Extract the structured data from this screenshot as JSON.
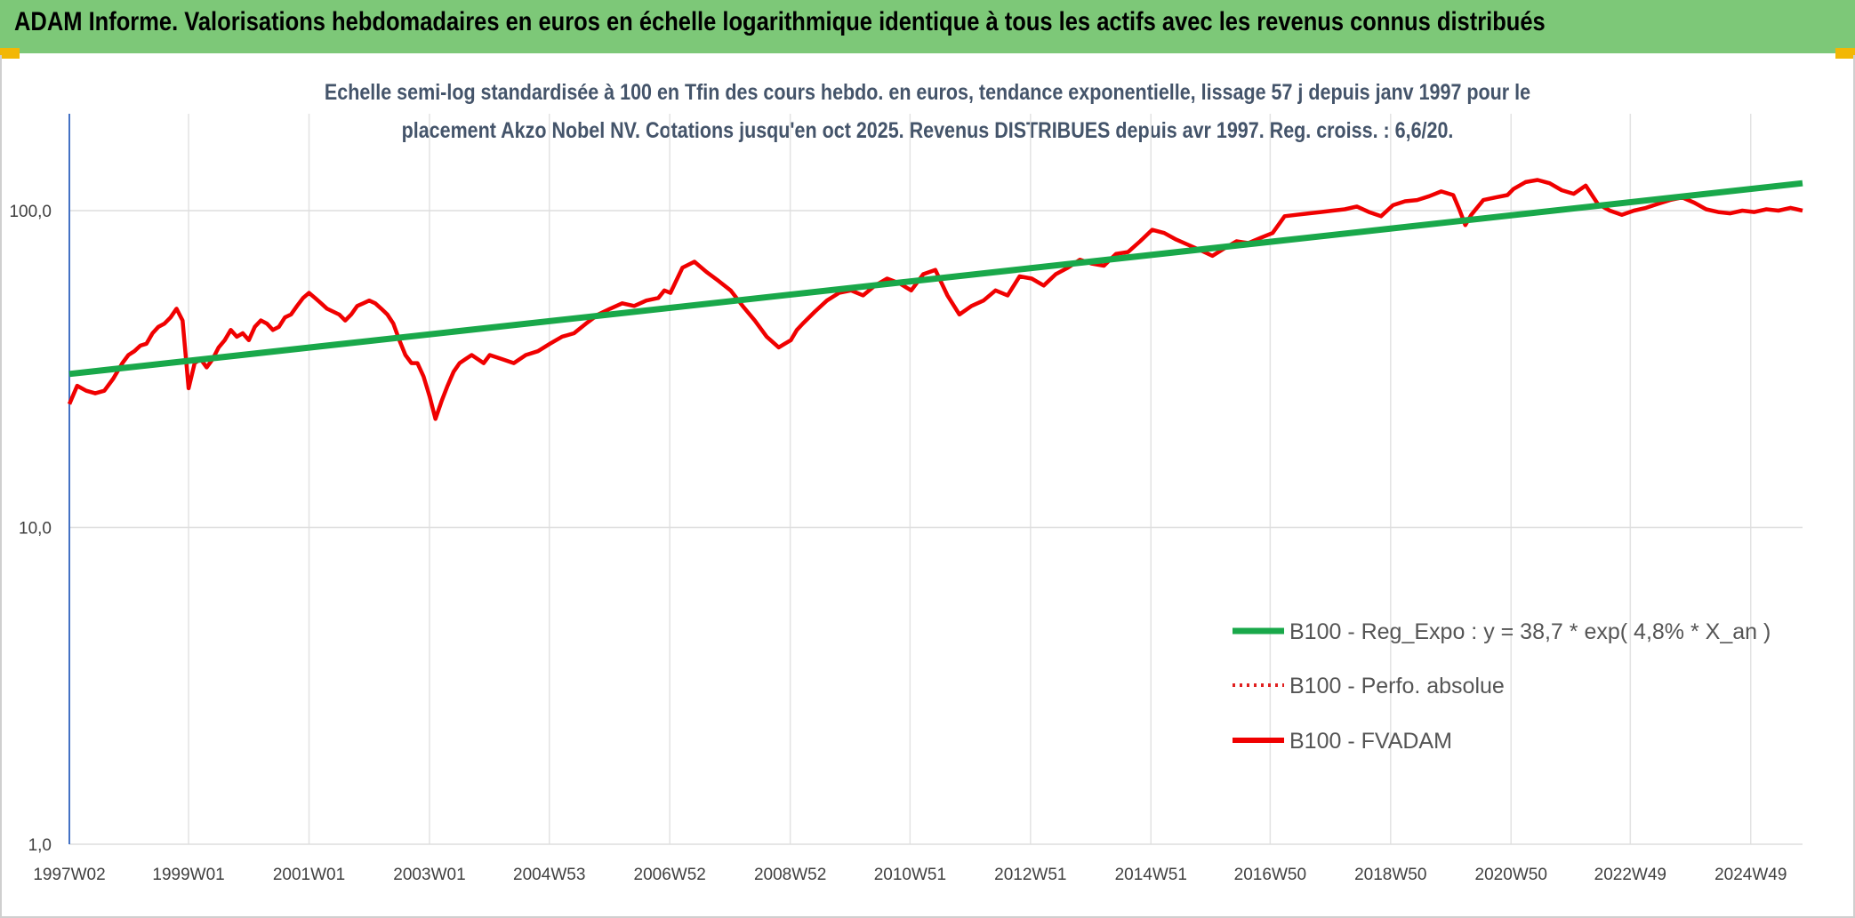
{
  "banner": {
    "title": "ADAM Informe. Valorisations hebdomadaires en euros en échelle logarithmique identique à tous les actifs avec les revenus connus distribués"
  },
  "colors": {
    "banner": "#7dc878",
    "trend": "#19a84a",
    "fvadam": "#f00000",
    "perfo": "#e02020",
    "subtitle": "#44546a",
    "corner": "#f2b705"
  },
  "chart_data": {
    "type": "line",
    "subtitle_lines": [
      "Echelle semi-log standardisée à 100 en Tfin des cours hebdo. en euros, tendance exponentielle, lissage 57 j depuis janv 1997 pour le",
      "placement Akzo Nobel NV. Cotations jusqu'en oct 2025. Revenus DISTRIBUES depuis avr 1997. Reg. croiss. : 6,6/20."
    ],
    "y_scale": "log",
    "ylim": [
      1,
      180
    ],
    "y_ticks": [
      {
        "value": 1,
        "label": "1,0"
      },
      {
        "value": 10,
        "label": "10,0"
      },
      {
        "value": 100,
        "label": "100,0"
      }
    ],
    "xlim": [
      1997.02,
      2025.8
    ],
    "x_ticks": [
      {
        "value": 1997.02,
        "label": "1997W02"
      },
      {
        "value": 1999.0,
        "label": "1999W01"
      },
      {
        "value": 2001.0,
        "label": "2001W01"
      },
      {
        "value": 2003.0,
        "label": "2003W01"
      },
      {
        "value": 2004.99,
        "label": "2004W53"
      },
      {
        "value": 2006.99,
        "label": "2006W52"
      },
      {
        "value": 2008.99,
        "label": "2008W52"
      },
      {
        "value": 2010.98,
        "label": "2010W51"
      },
      {
        "value": 2012.98,
        "label": "2012W51"
      },
      {
        "value": 2014.98,
        "label": "2014W51"
      },
      {
        "value": 2016.96,
        "label": "2016W50"
      },
      {
        "value": 2018.96,
        "label": "2018W50"
      },
      {
        "value": 2020.96,
        "label": "2020W50"
      },
      {
        "value": 2022.94,
        "label": "2022W49"
      },
      {
        "value": 2024.94,
        "label": "2024W49"
      }
    ],
    "grid": "vertical and horizontal light gray",
    "legend_position": "lower-right",
    "series": [
      {
        "name": "B100 - Reg_Expo : y = 38,7 * exp( 4,8% *  X_an )",
        "style": "solid-thick",
        "color": "#19a84a",
        "x": [
          1997.02,
          2025.8
        ],
        "y": [
          30.5,
          122
        ]
      },
      {
        "name": "B100 - Perfo. absolue",
        "style": "dotted",
        "color": "#e02020",
        "x": [],
        "y": []
      },
      {
        "name": "B100 - FVADAM",
        "style": "solid-thick",
        "color": "#f00000",
        "x": [
          1997.02,
          1997.15,
          1997.3,
          1997.45,
          1997.6,
          1997.75,
          1997.9,
          1998.0,
          1998.1,
          1998.2,
          1998.3,
          1998.4,
          1998.5,
          1998.6,
          1998.7,
          1998.8,
          1998.9,
          1999.0,
          1999.1,
          1999.2,
          1999.3,
          1999.4,
          1999.5,
          1999.6,
          1999.7,
          1999.8,
          1999.9,
          2000.0,
          2000.1,
          2000.2,
          2000.3,
          2000.4,
          2000.5,
          2000.6,
          2000.7,
          2000.8,
          2000.9,
          2001.0,
          2001.1,
          2001.2,
          2001.3,
          2001.4,
          2001.5,
          2001.6,
          2001.7,
          2001.8,
          2001.9,
          2002.0,
          2002.1,
          2002.2,
          2002.3,
          2002.4,
          2002.5,
          2002.6,
          2002.7,
          2002.8,
          2002.9,
          2003.0,
          2003.1,
          2003.2,
          2003.3,
          2003.4,
          2003.5,
          2003.6,
          2003.7,
          2003.8,
          2003.9,
          2004.0,
          2004.2,
          2004.4,
          2004.6,
          2004.8,
          2005.0,
          2005.2,
          2005.4,
          2005.6,
          2005.8,
          2006.0,
          2006.2,
          2006.4,
          2006.6,
          2006.8,
          2006.9,
          2007.0,
          2007.2,
          2007.4,
          2007.6,
          2007.8,
          2008.0,
          2008.2,
          2008.4,
          2008.6,
          2008.8,
          2008.9,
          2009.0,
          2009.1,
          2009.2,
          2009.4,
          2009.6,
          2009.8,
          2010.0,
          2010.2,
          2010.4,
          2010.6,
          2010.8,
          2011.0,
          2011.2,
          2011.4,
          2011.6,
          2011.8,
          2012.0,
          2012.2,
          2012.4,
          2012.6,
          2012.8,
          2013.0,
          2013.2,
          2013.4,
          2013.6,
          2013.8,
          2014.0,
          2014.2,
          2014.4,
          2014.6,
          2014.8,
          2015.0,
          2015.2,
          2015.4,
          2015.6,
          2015.8,
          2016.0,
          2016.2,
          2016.4,
          2016.6,
          2016.8,
          2017.0,
          2017.2,
          2017.4,
          2017.6,
          2017.8,
          2018.0,
          2018.2,
          2018.4,
          2018.6,
          2018.8,
          2019.0,
          2019.2,
          2019.4,
          2019.6,
          2019.8,
          2020.0,
          2020.1,
          2020.2,
          2020.3,
          2020.5,
          2020.7,
          2020.9,
          2021.0,
          2021.2,
          2021.4,
          2021.6,
          2021.8,
          2022.0,
          2022.2,
          2022.4,
          2022.6,
          2022.8,
          2023.0,
          2023.2,
          2023.4,
          2023.6,
          2023.8,
          2024.0,
          2024.2,
          2024.4,
          2024.6,
          2024.8,
          2025.0,
          2025.2,
          2025.4,
          2025.6,
          2025.8
        ],
        "y": [
          24.5,
          28,
          27,
          26.5,
          27,
          29.5,
          33,
          35,
          36,
          37.5,
          38,
          41,
          43,
          44,
          46,
          49,
          45,
          27.5,
          33,
          34,
          32,
          34,
          37,
          39,
          42,
          40,
          41,
          39,
          43,
          45,
          44,
          42,
          43,
          46,
          47,
          50,
          53,
          55,
          53,
          51,
          49,
          48,
          47,
          45,
          47,
          50,
          51,
          52,
          51,
          49,
          47,
          44,
          39,
          35,
          33,
          33,
          30,
          26,
          22,
          25,
          28,
          31,
          33,
          34,
          35,
          34,
          33,
          35,
          34,
          33,
          35,
          36,
          38,
          40,
          41,
          44,
          47,
          49,
          51,
          50,
          52,
          53,
          56,
          55,
          66,
          69,
          64,
          60,
          56,
          50,
          45,
          40,
          37,
          38,
          39,
          42,
          44,
          48,
          52,
          55,
          56,
          54,
          58,
          61,
          59,
          56,
          63,
          65,
          54,
          47,
          50,
          52,
          56,
          54,
          62,
          61,
          58,
          63,
          66,
          70,
          68,
          67,
          73,
          74,
          80,
          87,
          85,
          81,
          78,
          75,
          72,
          76,
          80,
          79,
          82,
          85,
          96,
          97,
          98,
          99,
          100,
          101,
          103,
          99,
          96,
          104,
          107,
          108,
          111,
          115,
          112,
          101,
          90,
          97,
          108,
          110,
          112,
          117,
          123,
          125,
          122,
          116,
          113,
          120,
          105,
          100,
          97,
          100,
          102,
          105,
          108,
          110,
          106,
          101,
          99,
          98,
          100,
          99,
          101,
          100,
          102,
          100
        ]
      }
    ]
  }
}
